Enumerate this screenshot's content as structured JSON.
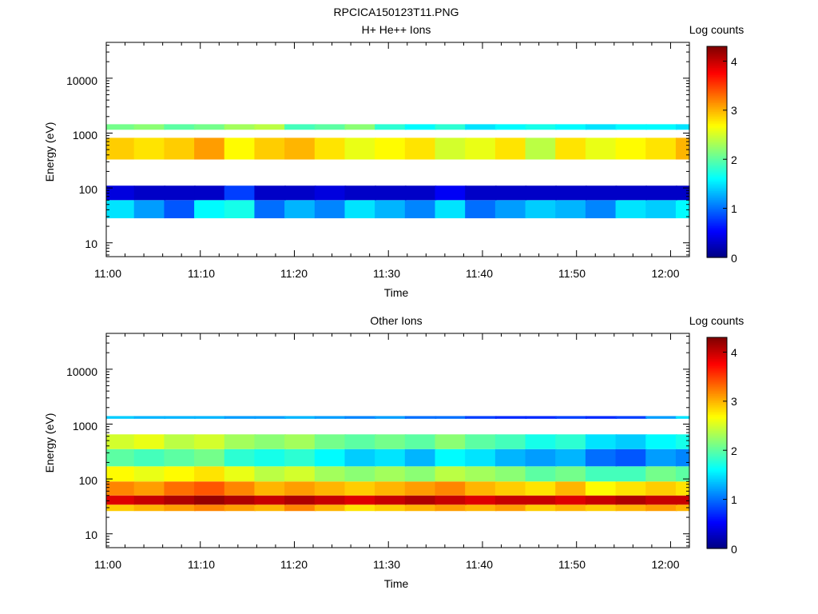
{
  "figure_title": "RPCICA150123T11.PNG",
  "colors": {
    "background": "#ffffff",
    "frame": "#000000"
  },
  "chart_data": [
    {
      "type": "heatmap",
      "title": "H+ He++ Ions",
      "xlabel": "Time",
      "ylabel": "Energy (eV)",
      "x_scale": "time",
      "x_range": [
        "11:00",
        "12:02"
      ],
      "x_ticks": [
        "11:00",
        "11:10",
        "11:20",
        "11:30",
        "11:40",
        "11:50",
        "12:00"
      ],
      "y_scale": "log",
      "y_range": [
        5.6,
        45000
      ],
      "y_ticks": [
        "10",
        "100",
        "1000",
        "10000"
      ],
      "colorbar": {
        "label": "Log counts",
        "range": [
          0,
          4.3
        ],
        "ticks": [
          "0",
          "1",
          "2",
          "3",
          "4"
        ],
        "colormap": "jet"
      },
      "time_bins": [
        "11:01.3",
        "11:04.6",
        "11:07.8",
        "11:11.0",
        "11:14.2",
        "11:17.4",
        "11:20.6",
        "11:23.8",
        "11:27.0",
        "11:30.2",
        "11:33.4",
        "11:36.6",
        "11:39.8",
        "11:43.0",
        "11:46.2",
        "11:49.4",
        "11:52.6",
        "11:55.8",
        "11:59.0",
        "12:02.2"
      ],
      "bands": [
        {
          "energy_range": [
            28,
            60
          ],
          "log_counts": [
            1.5,
            1.2,
            0.9,
            1.6,
            1.7,
            1.0,
            1.3,
            1.1,
            1.5,
            1.3,
            1.1,
            1.5,
            1.0,
            1.2,
            1.4,
            1.3,
            1.1,
            1.5,
            1.4,
            1.6
          ]
        },
        {
          "energy_range": [
            60,
            110
          ],
          "log_counts": [
            0.4,
            0.3,
            0.3,
            0.3,
            0.8,
            0.3,
            0.3,
            0.4,
            0.3,
            0.3,
            0.3,
            0.5,
            0.3,
            0.3,
            0.3,
            0.3,
            0.3,
            0.3,
            0.3,
            0.3
          ]
        },
        {
          "energy_range": [
            330,
            820
          ],
          "log_counts": [
            2.9,
            2.8,
            2.9,
            3.1,
            2.7,
            2.9,
            3.0,
            2.8,
            2.6,
            2.7,
            2.8,
            2.5,
            2.6,
            2.8,
            2.4,
            2.8,
            2.6,
            2.7,
            2.8,
            3.0
          ]
        },
        {
          "energy_range": [
            1150,
            1450
          ],
          "log_counts": [
            2.1,
            2.2,
            2.0,
            2.1,
            2.3,
            2.4,
            1.9,
            2.0,
            2.2,
            1.8,
            1.6,
            1.8,
            1.5,
            1.6,
            1.7,
            1.6,
            1.5,
            1.6,
            1.6,
            1.5
          ]
        }
      ]
    },
    {
      "type": "heatmap",
      "title": "Other Ions",
      "xlabel": "Time",
      "ylabel": "Energy (eV)",
      "x_scale": "time",
      "x_range": [
        "11:00",
        "12:02"
      ],
      "x_ticks": [
        "11:00",
        "11:10",
        "11:20",
        "11:30",
        "11:40",
        "11:50",
        "12:00"
      ],
      "y_scale": "log",
      "y_range": [
        5.6,
        45000
      ],
      "y_ticks": [
        "10",
        "100",
        "1000",
        "10000"
      ],
      "colorbar": {
        "label": "Log counts",
        "range": [
          0,
          4.3
        ],
        "ticks": [
          "0",
          "1",
          "2",
          "3",
          "4"
        ],
        "colormap": "jet"
      },
      "time_bins": [
        "11:01.3",
        "11:04.6",
        "11:07.8",
        "11:11.0",
        "11:14.2",
        "11:17.4",
        "11:20.6",
        "11:23.8",
        "11:27.0",
        "11:30.2",
        "11:33.4",
        "11:36.6",
        "11:39.8",
        "11:43.0",
        "11:46.2",
        "11:49.4",
        "11:52.6",
        "11:55.8",
        "11:59.0",
        "12:02.2"
      ],
      "bands": [
        {
          "energy_range": [
            26,
            34
          ],
          "log_counts": [
            2.9,
            3.0,
            3.1,
            3.2,
            3.1,
            3.0,
            3.2,
            3.0,
            2.8,
            2.9,
            3.0,
            3.1,
            3.0,
            3.1,
            2.9,
            3.0,
            2.9,
            3.0,
            3.1,
            3.0
          ]
        },
        {
          "energy_range": [
            34,
            50
          ],
          "log_counts": [
            3.9,
            4.0,
            4.1,
            4.2,
            4.1,
            4.0,
            4.1,
            4.0,
            3.9,
            4.0,
            4.1,
            4.0,
            3.9,
            4.0,
            4.0,
            3.9,
            4.0,
            4.1,
            4.0,
            4.0
          ]
        },
        {
          "energy_range": [
            50,
            90
          ],
          "log_counts": [
            3.2,
            3.1,
            3.3,
            3.4,
            3.2,
            3.0,
            3.1,
            3.0,
            2.9,
            3.0,
            3.1,
            3.2,
            3.0,
            2.9,
            2.8,
            3.0,
            2.7,
            2.8,
            2.9,
            2.8
          ]
        },
        {
          "energy_range": [
            90,
            170
          ],
          "log_counts": [
            2.7,
            2.6,
            2.7,
            2.8,
            2.6,
            2.4,
            2.5,
            2.3,
            2.2,
            2.3,
            2.2,
            2.4,
            2.3,
            2.2,
            2.0,
            2.1,
            1.9,
            1.9,
            2.1,
            2.0
          ]
        },
        {
          "energy_range": [
            170,
            350
          ],
          "log_counts": [
            2.0,
            1.9,
            2.0,
            2.1,
            1.8,
            1.7,
            1.8,
            1.6,
            1.4,
            1.5,
            1.3,
            1.6,
            1.5,
            1.3,
            1.2,
            1.3,
            1.0,
            0.9,
            1.2,
            1.1
          ]
        },
        {
          "energy_range": [
            350,
            650
          ],
          "log_counts": [
            2.5,
            2.6,
            2.4,
            2.5,
            2.3,
            2.2,
            2.3,
            2.1,
            2.0,
            2.1,
            2.0,
            2.2,
            2.0,
            1.9,
            1.7,
            1.8,
            1.5,
            1.4,
            1.6,
            1.7
          ]
        },
        {
          "energy_range": [
            1250,
            1400
          ],
          "log_counts": [
            1.4,
            1.3,
            1.3,
            1.3,
            1.2,
            1.2,
            1.3,
            1.2,
            1.1,
            1.2,
            1.0,
            1.0,
            0.8,
            0.7,
            0.7,
            0.8,
            0.7,
            0.8,
            1.2,
            1.5
          ]
        }
      ]
    }
  ]
}
